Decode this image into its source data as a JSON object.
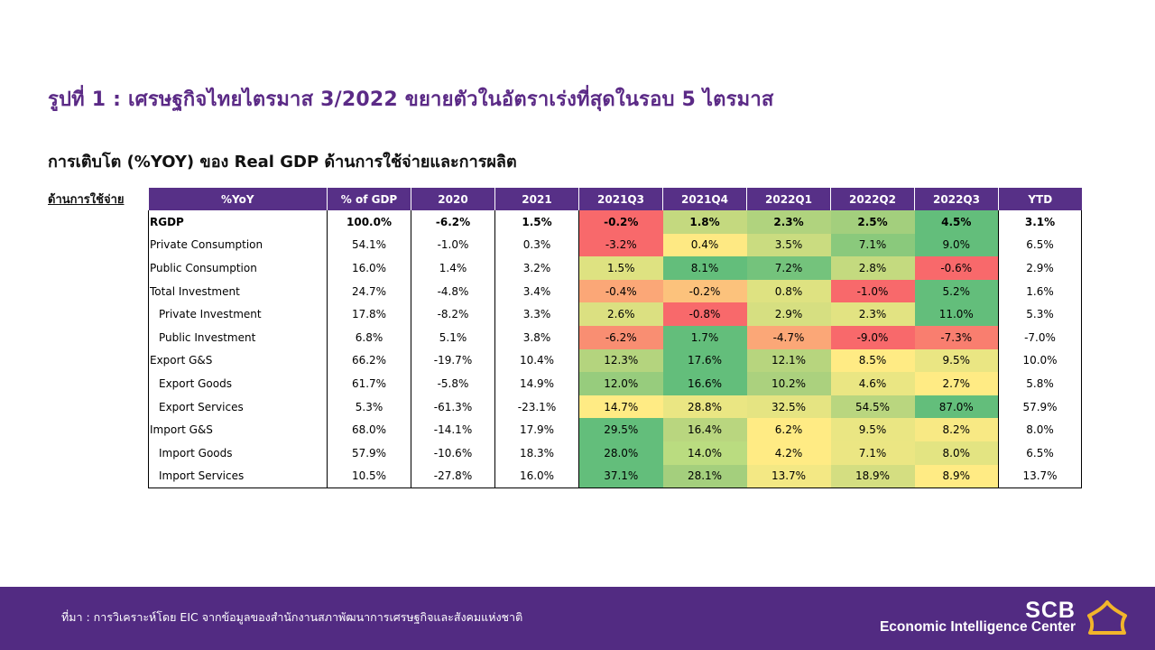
{
  "title": "รูปที่ 1 : เศรษฐกิจไทยไตรมาส 3/2022 ขยายตัวในอัตราเร่งที่สุดในรอบ 5 ไตรมาส",
  "subtitle": "การเติบโต (%YOY) ของ Real GDP ด้านการใช้จ่ายและการผลิต",
  "side_label": "ด้านการใช้จ่าย",
  "chart_data": {
    "type": "table",
    "columns": [
      "%YoY",
      "% of GDP",
      "2020",
      "2021",
      "2021Q3",
      "2021Q4",
      "2022Q1",
      "2022Q2",
      "2022Q3",
      "YTD"
    ],
    "rows": [
      {
        "label": "RGDP",
        "indent": false,
        "bold": true,
        "cells": [
          "100.0%",
          "-6.2%",
          "1.5%",
          "-0.2%",
          "1.8%",
          "2.3%",
          "2.5%",
          "4.5%",
          "3.1%"
        ],
        "heat": [
          "#f8696b",
          "#c4d97f",
          "#b0d37e",
          "#a3cf7d",
          "#63be7b"
        ]
      },
      {
        "label": "Private Consumption",
        "indent": false,
        "bold": false,
        "cells": [
          "54.1%",
          "-1.0%",
          "0.3%",
          "-3.2%",
          "0.4%",
          "3.5%",
          "7.1%",
          "9.0%",
          "6.5%"
        ],
        "heat": [
          "#f8696b",
          "#fee983",
          "#cadc80",
          "#8ac97c",
          "#63be7b"
        ]
      },
      {
        "label": "Public Consumption",
        "indent": false,
        "bold": false,
        "cells": [
          "16.0%",
          "1.4%",
          "3.2%",
          "1.5%",
          "8.1%",
          "7.2%",
          "2.8%",
          "-0.6%",
          "2.9%"
        ],
        "heat": [
          "#dee281",
          "#63be7b",
          "#74c37c",
          "#c4da7f",
          "#f8696b"
        ]
      },
      {
        "label": "Total Investment",
        "indent": false,
        "bold": false,
        "cells": [
          "24.7%",
          "-4.8%",
          "3.4%",
          "-0.4%",
          "-0.2%",
          "0.8%",
          "-1.0%",
          "5.2%",
          "1.6%"
        ],
        "heat": [
          "#fba777",
          "#fcc27c",
          "#dee281",
          "#f8696b",
          "#63be7b"
        ]
      },
      {
        "label": "Private Investment",
        "indent": true,
        "bold": false,
        "cells": [
          "17.8%",
          "-8.2%",
          "3.3%",
          "2.6%",
          "-0.8%",
          "2.9%",
          "2.3%",
          "11.0%",
          "5.3%"
        ],
        "heat": [
          "#dbe081",
          "#f8696b",
          "#d6df81",
          "#e2e382",
          "#63be7b"
        ]
      },
      {
        "label": "Public Investment",
        "indent": true,
        "bold": false,
        "cells": [
          "6.8%",
          "5.1%",
          "3.8%",
          "-6.2%",
          "1.7%",
          "-4.7%",
          "-9.0%",
          "-7.3%",
          "-7.0%"
        ],
        "heat": [
          "#f98e72",
          "#63be7b",
          "#fba777",
          "#f8696b",
          "#f97e6f"
        ]
      },
      {
        "label": "Export G&S",
        "indent": false,
        "bold": false,
        "cells": [
          "66.2%",
          "-19.7%",
          "10.4%",
          "12.3%",
          "17.6%",
          "12.1%",
          "8.5%",
          "9.5%",
          "10.0%"
        ],
        "heat": [
          "#b4d47e",
          "#63be7b",
          "#b7d57e",
          "#ffeb84",
          "#eae683"
        ]
      },
      {
        "label": "Export Goods",
        "indent": true,
        "bold": false,
        "cells": [
          "61.7%",
          "-5.8%",
          "14.9%",
          "12.0%",
          "16.6%",
          "10.2%",
          "4.6%",
          "2.7%",
          "5.8%"
        ],
        "heat": [
          "#97cc7d",
          "#63be7b",
          "#abd17e",
          "#eae683",
          "#ffeb84"
        ]
      },
      {
        "label": "Export Services",
        "indent": true,
        "bold": false,
        "cells": [
          "5.3%",
          "-61.3%",
          "-23.1%",
          "14.7%",
          "28.8%",
          "32.5%",
          "54.5%",
          "87.0%",
          "57.9%"
        ],
        "heat": [
          "#ffeb84",
          "#eae683",
          "#e5e482",
          "#b9d67f",
          "#63be7b"
        ]
      },
      {
        "label": "Import G&S",
        "indent": false,
        "bold": false,
        "cells": [
          "68.0%",
          "-14.1%",
          "17.9%",
          "29.5%",
          "16.4%",
          "6.2%",
          "9.5%",
          "8.2%",
          "8.0%"
        ],
        "heat": [
          "#63be7b",
          "#b9d67f",
          "#ffeb84",
          "#eae683",
          "#f8e984"
        ]
      },
      {
        "label": "Import Goods",
        "indent": true,
        "bold": false,
        "cells": [
          "57.9%",
          "-10.6%",
          "18.3%",
          "28.0%",
          "14.0%",
          "4.2%",
          "7.1%",
          "8.0%",
          "6.5%"
        ],
        "heat": [
          "#63be7b",
          "#badc80",
          "#ffeb84",
          "#ebe683",
          "#e3e482"
        ]
      },
      {
        "label": "Import Services",
        "indent": true,
        "bold": false,
        "cells": [
          "10.5%",
          "-27.8%",
          "16.0%",
          "37.1%",
          "28.1%",
          "13.7%",
          "18.9%",
          "8.9%",
          "13.7%"
        ],
        "heat": [
          "#63be7b",
          "#a4cf7d",
          "#f3e884",
          "#d4de81",
          "#ffeb84"
        ]
      }
    ]
  },
  "footer": {
    "source": "ที่มา : การวิเคราะห์โดย EIC จากข้อมูลของสำนักงานสภาพัฒนาการเศรษฐกิจและสังคมแห่งชาติ",
    "brand": "SCB",
    "brand_sub": "Economic Intelligence Center"
  },
  "colors": {
    "header_bg": "#573087",
    "title_color": "#5b2a86",
    "footer_bg": "#522b82",
    "logo_gold": "#f2b52b"
  },
  "icons": [
    "scb-logo-icon"
  ]
}
